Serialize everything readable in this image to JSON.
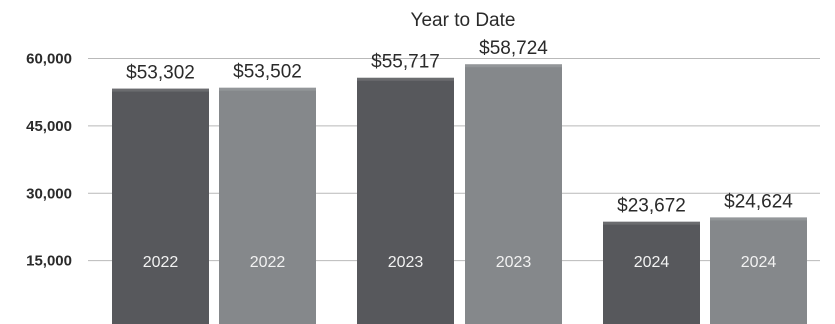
{
  "chart_data": {
    "type": "bar",
    "title": "Year to Date",
    "xlabel": "",
    "ylabel": "",
    "ylim": [
      0,
      62000
    ],
    "yticks": [
      15000,
      30000,
      45000,
      60000
    ],
    "ytick_labels": [
      "15,000",
      "30,000",
      "45,000",
      "60,000"
    ],
    "grid": true,
    "categories": [
      "2022",
      "2022",
      "2023",
      "2023",
      "2024",
      "2024"
    ],
    "values": [
      53302,
      53502,
      55717,
      58724,
      23672,
      24624
    ],
    "value_labels": [
      "$53,302",
      "$53,502",
      "$55,717",
      "$58,724",
      "$23,672",
      "$24,624"
    ],
    "bar_colors": [
      "#57585c",
      "#85888b",
      "#57585c",
      "#85888b",
      "#57585c",
      "#85888b"
    ]
  }
}
